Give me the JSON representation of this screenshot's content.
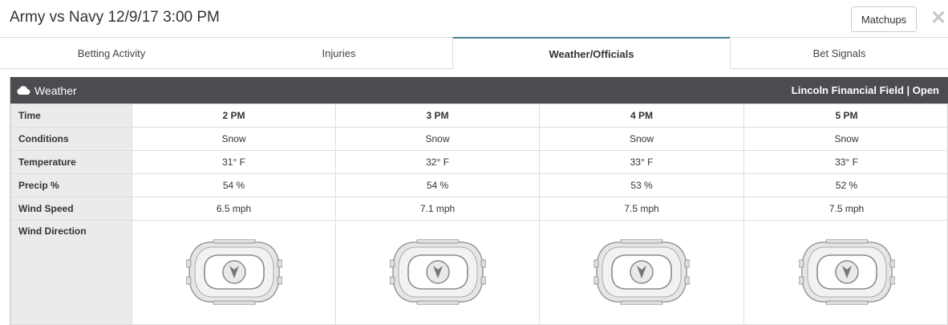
{
  "header": {
    "title": "Army vs Navy 12/9/17 3:00 PM",
    "matchups_label": "Matchups",
    "close_label": "✕"
  },
  "tabs": [
    {
      "label": "Betting Activity",
      "active": false
    },
    {
      "label": "Injuries",
      "active": false
    },
    {
      "label": "Weather/Officials",
      "active": true
    },
    {
      "label": "Bet Signals",
      "active": false
    }
  ],
  "weather": {
    "title": "Weather",
    "venue": "Lincoln Financial Field | Open",
    "row_labels": {
      "time": "Time",
      "conditions": "Conditions",
      "temperature": "Temperature",
      "precip": "Precip %",
      "wind_speed": "Wind Speed",
      "wind_direction": "Wind Direction"
    },
    "hours": [
      {
        "time": "2 PM",
        "conditions": "Snow",
        "temperature": "31° F",
        "precip": "54 %",
        "wind_speed": "6.5 mph",
        "wind_arrow": "down"
      },
      {
        "time": "3 PM",
        "conditions": "Snow",
        "temperature": "32° F",
        "precip": "54 %",
        "wind_speed": "7.1 mph",
        "wind_arrow": "down"
      },
      {
        "time": "4 PM",
        "conditions": "Snow",
        "temperature": "33° F",
        "precip": "53 %",
        "wind_speed": "7.5 mph",
        "wind_arrow": "down"
      },
      {
        "time": "5 PM",
        "conditions": "Snow",
        "temperature": "33° F",
        "precip": "52 %",
        "wind_speed": "7.5 mph",
        "wind_arrow": "down"
      }
    ]
  },
  "colors": {
    "panel_header": "#4a4c50",
    "label_bg": "#ebebeb",
    "active_tab": "#4a7f95"
  },
  "icons": {
    "weather": "cloud-icon",
    "stadium": "stadium-icon",
    "wind": "wind-arrow-icon"
  }
}
